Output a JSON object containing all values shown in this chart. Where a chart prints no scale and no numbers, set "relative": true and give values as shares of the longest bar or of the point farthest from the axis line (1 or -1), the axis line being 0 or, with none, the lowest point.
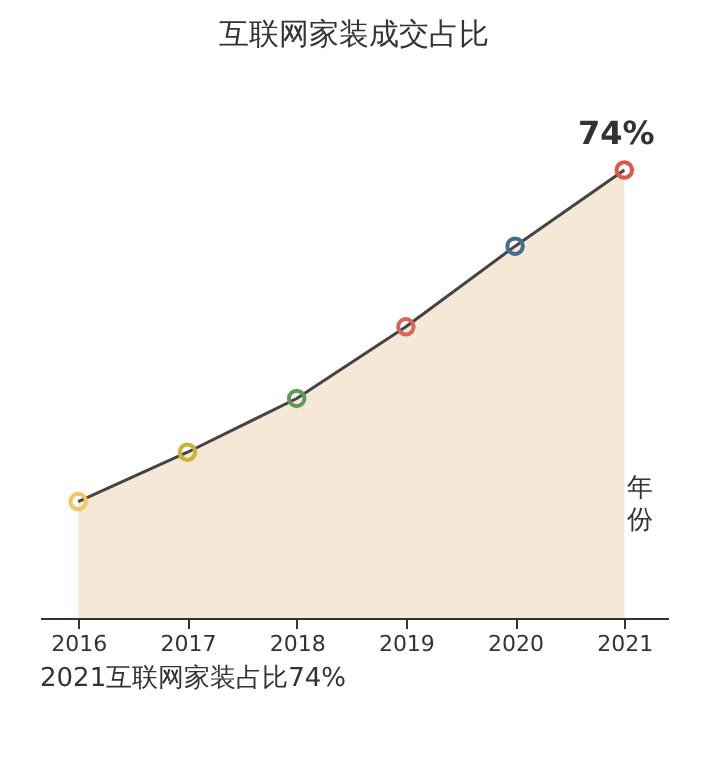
{
  "chart_data": {
    "type": "area",
    "title": "互联网家装成交占比",
    "xlabel": "年份",
    "marker": "circle",
    "relative": true,
    "categories": [
      "2016",
      "2017",
      "2018",
      "2019",
      "2020",
      "2021"
    ],
    "series": [
      {
        "color": "#f5e8d6",
        "values": [
          0.26,
          0.37,
          0.49,
          0.65,
          0.83,
          1
        ],
        "colors": [
          "#f2c75c",
          "#c9b23a",
          "#5f9a5a",
          "#d9655a",
          "#3f6f8a",
          "#e2554a"
        ]
      }
    ],
    "annotations": [
      "74%",
      "2021互联网家装占比74%"
    ],
    "grid": false
  }
}
